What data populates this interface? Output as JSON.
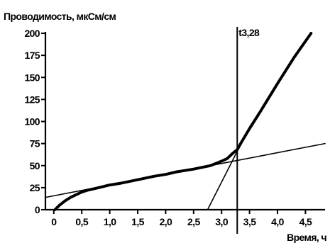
{
  "chart_data": {
    "type": "line",
    "ylabel": "Проводимость, мкСм/см",
    "xlabel": "Время, ч",
    "xlim": [
      -0.15,
      4.85
    ],
    "ylim": [
      0,
      200
    ],
    "x_ticks": [
      0,
      0.5,
      1.0,
      1.5,
      2.0,
      2.5,
      3.0,
      3.5,
      4.0,
      4.5
    ],
    "x_tick_labels": [
      "0",
      "0,5",
      "1,0",
      "1,5",
      "2,0",
      "2,5",
      "3,0",
      "3,5",
      "4,0",
      "4,5"
    ],
    "y_ticks": [
      0,
      25,
      50,
      75,
      100,
      125,
      150,
      175,
      200
    ],
    "y_tick_labels": [
      "0",
      "25",
      "50",
      "75",
      "100",
      "125",
      "150",
      "175",
      "200"
    ],
    "grid": false,
    "annotation": {
      "text": "t3,28",
      "x": 3.28
    },
    "series": [
      {
        "style": "thick",
        "x": [
          0.02,
          0.1,
          0.2,
          0.3,
          0.4,
          0.5,
          0.6,
          0.8,
          1.0,
          1.2,
          1.5,
          1.8,
          2.0,
          2.2,
          2.5,
          2.8,
          3.0,
          3.1,
          3.2,
          3.28,
          3.35,
          3.5,
          3.7,
          4.0,
          4.3,
          4.6
        ],
        "y": [
          0,
          5,
          10,
          14,
          17,
          20,
          22,
          25,
          28,
          30,
          34,
          38,
          40,
          43,
          46,
          50,
          55,
          58,
          64,
          68,
          76,
          92,
          112,
          143,
          173,
          201
        ]
      },
      {
        "style": "thin",
        "x": [
          -0.15,
          4.85
        ],
        "y": [
          14,
          75
        ]
      },
      {
        "style": "thin",
        "x": [
          2.75,
          3.35
        ],
        "y": [
          0,
          75
        ]
      }
    ]
  }
}
